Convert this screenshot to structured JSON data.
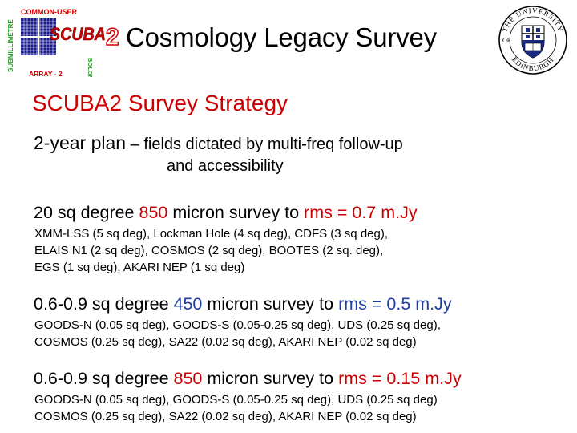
{
  "header": {
    "logo_left": {
      "arc_text": "COMMON-USER",
      "left_text": "SUBMILLIMETRE",
      "right_text": "BOLOMETER",
      "bottom_text": "ARRAY - 2",
      "name": "SCUBA",
      "number": "2",
      "icon": "scuba2-logo"
    },
    "title": "Cosmology Legacy Survey",
    "logo_right": {
      "text_top": "THE UNIVERSITY",
      "text_bottom": "EDINBURGH",
      "text_of": "OF",
      "icon": "university-of-edinburgh-crest"
    }
  },
  "heading": "SCUBA2 Survey Strategy",
  "plan": {
    "lead": "2-year plan",
    "rest_line1": " – fields dictated by multi-freq follow-up",
    "line2": "and accessibility"
  },
  "surveys": [
    {
      "prefix": "20 sq degree ",
      "wavelength": "850",
      "middle": " micron survey to ",
      "rms": "rms = 0.7 m.Jy",
      "color": "#cc0000",
      "fields": [
        "XMM-LSS (5 sq deg), Lockman Hole (4 sq deg), CDFS (3 sq deg),",
        "ELAIS N1 (2 sq deg), COSMOS (2 sq deg), BOOTES (2 sq. deg),",
        "EGS (1 sq deg), AKARI NEP (1 sq deg)"
      ]
    },
    {
      "prefix": "0.6-0.9 sq degree ",
      "wavelength": "450",
      "middle": " micron survey to ",
      "rms": "rms = 0.5 m.Jy",
      "color": "#1f3fa0",
      "fields": [
        "GOODS-N (0.05 sq deg), GOODS-S (0.05-0.25 sq deg), UDS (0.25 sq deg),",
        "COSMOS (0.25 sq deg), SA22 (0.02 sq deg), AKARI NEP (0.02 sq deg)"
      ]
    },
    {
      "prefix": "0.6-0.9 sq degree ",
      "wavelength": "850",
      "middle": " micron survey to ",
      "rms": "rms = 0.15 m.Jy",
      "color": "#cc0000",
      "fields": [
        "GOODS-N (0.05 sq deg), GOODS-S (0.05-0.25 sq deg), UDS (0.25 sq deg)",
        "COSMOS (0.25 sq deg), SA22 (0.02 sq deg), AKARI NEP (0.02 sq deg)"
      ]
    }
  ]
}
